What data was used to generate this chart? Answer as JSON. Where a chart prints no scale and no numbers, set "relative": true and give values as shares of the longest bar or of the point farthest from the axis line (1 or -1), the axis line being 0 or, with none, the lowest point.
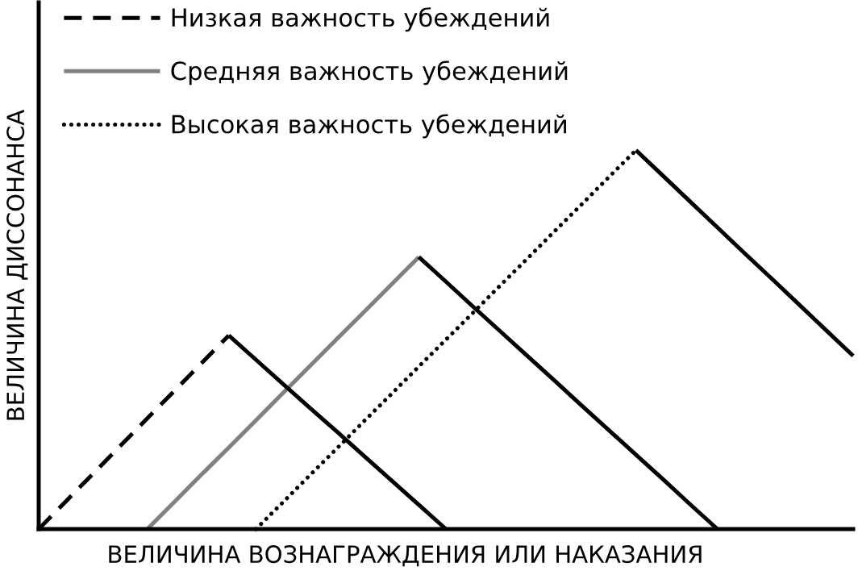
{
  "chart_data": {
    "type": "line",
    "relative": true,
    "xlabel": "ВЕЛИЧИНА ВОЗНАГРАЖДЕНИЯ ИЛИ НАКАЗАНИЯ",
    "ylabel": "ВЕЛИЧИНА ДИССОНАНСА",
    "legend": "top left",
    "categories": [
      null,
      null,
      null,
      null,
      null,
      null,
      null,
      null,
      null,
      null,
      null,
      null,
      null,
      null,
      null,
      null,
      null,
      null,
      null,
      null,
      null,
      null,
      null,
      null,
      null,
      null,
      null,
      null,
      null,
      null,
      null
    ],
    "series": [
      {
        "name": "Низкая важность убеждений",
        "color": "#000000",
        "line_style": "dashed",
        "values": [
          0,
          0.073,
          0.146,
          0.219,
          0.292,
          0.365,
          0.438,
          0.511,
          null,
          null,
          null,
          null,
          null,
          null,
          null,
          null,
          null,
          null,
          null,
          null,
          null,
          null,
          null,
          null,
          null,
          null,
          null,
          null,
          null,
          null,
          null
        ]
      },
      {
        "name": "Средняя важность убеждений",
        "color": "#808080",
        "line_style": "solid",
        "values": [
          null,
          null,
          null,
          null,
          0,
          0.072,
          0.144,
          0.215,
          0.287,
          0.359,
          0.431,
          0.503,
          0.574,
          0.646,
          0.718,
          null,
          null,
          null,
          null,
          null,
          null,
          null,
          null,
          null,
          null,
          null,
          null,
          null,
          null,
          null,
          null
        ]
      },
      {
        "name": "Высокая важность убеждений",
        "color": "#000000",
        "line_style": "dotted",
        "values": [
          null,
          null,
          null,
          null,
          null,
          null,
          null,
          null,
          0,
          0.071,
          0.143,
          0.214,
          0.286,
          0.357,
          0.429,
          0.5,
          0.571,
          0.643,
          0.714,
          0.786,
          0.857,
          0.929,
          1,
          null,
          null,
          null,
          null,
          null,
          null,
          null,
          null
        ]
      },
      {
        "color": "#000000",
        "line_style": "solid",
        "values": [
          null,
          null,
          null,
          null,
          null,
          null,
          null,
          0.511,
          0.447,
          0.383,
          0.319,
          0.256,
          0.192,
          0.128,
          0.064,
          0,
          null,
          null,
          null,
          null,
          null,
          null,
          null,
          null,
          null,
          null,
          null,
          null,
          null,
          null,
          null
        ]
      },
      {
        "color": "#000000",
        "line_style": "solid",
        "values": [
          null,
          null,
          null,
          null,
          null,
          null,
          null,
          null,
          null,
          null,
          null,
          null,
          null,
          null,
          0.718,
          0.653,
          0.587,
          0.522,
          0.457,
          0.392,
          0.326,
          0.261,
          0.196,
          0.131,
          0.065,
          0,
          null,
          null,
          null,
          null,
          null
        ]
      },
      {
        "color": "#000000",
        "line_style": "solid",
        "values": [
          null,
          null,
          null,
          null,
          null,
          null,
          null,
          null,
          null,
          null,
          null,
          null,
          null,
          null,
          null,
          null,
          null,
          null,
          null,
          null,
          null,
          null,
          1,
          0.932,
          0.864,
          0.796,
          0.728,
          0.661,
          0.593,
          0.525,
          0.457
        ]
      }
    ]
  }
}
